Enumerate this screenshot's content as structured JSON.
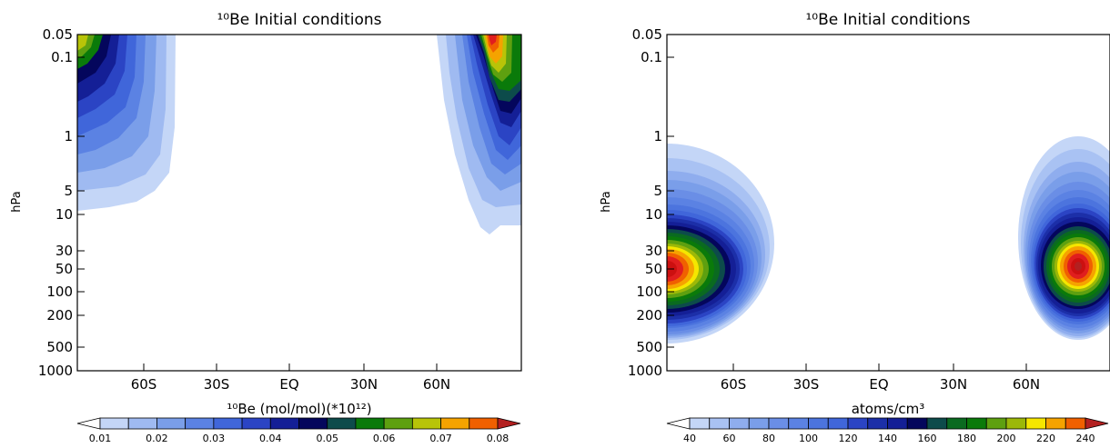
{
  "chart_data": [
    {
      "type": "heatmap",
      "title": "¹⁰Be Initial conditions",
      "xlabel": "",
      "ylabel": "hPa",
      "x_ticks": [
        "60S",
        "30S",
        "EQ",
        "30N",
        "60N"
      ],
      "y_ticks": [
        "0.05",
        "0.1",
        "1",
        "5",
        "10",
        "30",
        "50",
        "100",
        "200",
        "500",
        "1000"
      ],
      "y_scale": "log",
      "colorbar_title": "¹⁰Be (mol/mol)(*10¹²)",
      "colorbar_labels": [
        "0.01",
        "0.02",
        "0.03",
        "0.04",
        "0.05",
        "0.06",
        "0.07",
        "0.08"
      ],
      "colorbar_levels": [
        0.01,
        0.015,
        0.02,
        0.025,
        0.03,
        0.035,
        0.04,
        0.045,
        0.05,
        0.055,
        0.06,
        0.065,
        0.07,
        0.075,
        0.08
      ],
      "colors": [
        "#ffffff",
        "#c4d6f7",
        "#9fbaf1",
        "#7a9ee9",
        "#5b82e3",
        "#4066da",
        "#2b44c4",
        "#141f96",
        "#04065c",
        "#0d4b4b",
        "#0a7a0a",
        "#5ea010",
        "#b8c408",
        "#f5a300",
        "#f06000",
        "#e01e1e",
        "#cc1010",
        "#b32020"
      ],
      "features": [
        {
          "region": "southern high latitudes (~85S to ~55S)",
          "pressure_range_hPa": [
            0.05,
            20
          ],
          "peak_value": "≥0.06",
          "peak_pressure_hPa": 0.05
        },
        {
          "region": "northern high latitudes (~55N to 90N)",
          "pressure_range_hPa": [
            0.05,
            22
          ],
          "peak_value": "≥0.08",
          "peak_pressure_hPa": 0.05,
          "peak_lat": "~77N"
        }
      ]
    },
    {
      "type": "heatmap",
      "title": "¹⁰Be Initial conditions",
      "xlabel": "",
      "ylabel": "hPa",
      "x_ticks": [
        "60S",
        "30S",
        "EQ",
        "30N",
        "60N"
      ],
      "y_ticks": [
        "0.05",
        "0.1",
        "1",
        "5",
        "10",
        "30",
        "50",
        "100",
        "200",
        "500",
        "1000"
      ],
      "y_scale": "log",
      "colorbar_title": "atoms/cm³",
      "colorbar_labels": [
        "40",
        "60",
        "80",
        "100",
        "120",
        "140",
        "160",
        "180",
        "200",
        "220",
        "240"
      ],
      "colorbar_levels": [
        40,
        50,
        60,
        70,
        80,
        90,
        100,
        110,
        120,
        130,
        140,
        150,
        160,
        170,
        180,
        190,
        200,
        210,
        220,
        230,
        240
      ],
      "colors": [
        "#ffffff",
        "#c4d6f7",
        "#a9c2f3",
        "#8fadee",
        "#7a9ee9",
        "#6a8ee6",
        "#5b82e3",
        "#4c74de",
        "#4066da",
        "#2b44c4",
        "#1c2fa8",
        "#141f96",
        "#04065c",
        "#0d4b4b",
        "#0a6a20",
        "#0a7a0a",
        "#5ea010",
        "#9cb808",
        "#f5e600",
        "#f5a300",
        "#f06000",
        "#e01e1e",
        "#cc1010",
        "#b32020"
      ],
      "features": [
        {
          "region": "southern high latitudes (~90S to ~50S)",
          "pressure_range_hPa": [
            1,
            450
          ],
          "peak_value": "≥220",
          "peak_pressure_hPa": 50,
          "peak_lat": "~85S"
        },
        {
          "region": "northern high latitudes (~55N to 90N)",
          "pressure_range_hPa": [
            1,
            450
          ],
          "peak_value": "≥220",
          "peak_pressure_hPa": 50,
          "peak_lat": "~77N"
        }
      ]
    }
  ]
}
